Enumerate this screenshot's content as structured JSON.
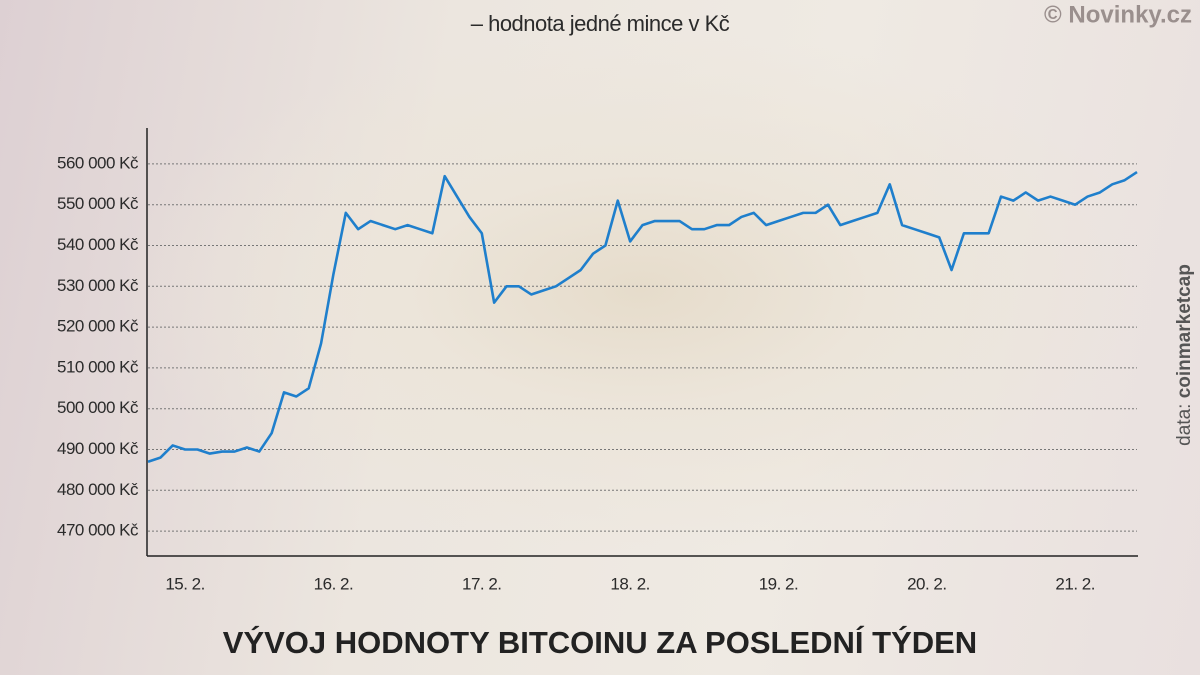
{
  "chart_data": {
    "type": "line",
    "title": "VÝVOJ HODNOTY BITCOINU ZA POSLEDNÍ TÝDEN",
    "subtitle": "– hodnota jedné mince v Kč",
    "credit": "© Novinky.cz",
    "source_label": "data:",
    "source": "coinmarketcap",
    "color": "#1f7fcc",
    "grid": true,
    "categories": [
      null,
      null,
      null,
      "15. 2.",
      null,
      null,
      null,
      null,
      null,
      null,
      null,
      null,
      null,
      null,
      null,
      "16. 2.",
      null,
      null,
      null,
      null,
      null,
      null,
      null,
      null,
      null,
      null,
      null,
      "17. 2.",
      null,
      null,
      null,
      null,
      null,
      null,
      null,
      null,
      null,
      null,
      null,
      "18. 2.",
      null,
      null,
      null,
      null,
      null,
      null,
      null,
      null,
      null,
      null,
      null,
      "19. 2.",
      null,
      null,
      null,
      null,
      null,
      null,
      null,
      null,
      null,
      null,
      null,
      "20. 2.",
      null,
      null,
      null,
      null,
      null,
      null,
      null,
      null,
      null,
      null,
      null,
      "21. 2.",
      null,
      null,
      null,
      null,
      null
    ],
    "values": [
      487000,
      488000,
      491000,
      490000,
      490000,
      489000,
      489500,
      489500,
      490500,
      489500,
      494000,
      504000,
      503000,
      505000,
      516000,
      533000,
      548000,
      544000,
      546000,
      545000,
      544000,
      545000,
      544000,
      543000,
      557000,
      552000,
      547000,
      543000,
      526000,
      530000,
      530000,
      528000,
      529000,
      530000,
      532000,
      534000,
      538000,
      540000,
      551000,
      541000,
      545000,
      546000,
      546000,
      546000,
      544000,
      544000,
      545000,
      545000,
      547000,
      548000,
      545000,
      546000,
      547000,
      548000,
      548000,
      550000,
      545000,
      546000,
      547000,
      548000,
      555000,
      545000,
      544000,
      543000,
      542000,
      534000,
      543000,
      543000,
      543000,
      552000,
      551000,
      553000,
      551000,
      552000,
      551000,
      550000,
      552000,
      553000,
      555000,
      556000,
      558000
    ],
    "ylim": [
      463900,
      568800
    ],
    "yticks": [
      {
        "value": 470000,
        "label": "470 000 Kč"
      },
      {
        "value": 480000,
        "label": "480 000 Kč"
      },
      {
        "value": 490000,
        "label": "490 000 Kč"
      },
      {
        "value": 500000,
        "label": "500 000 Kč"
      },
      {
        "value": 510000,
        "label": "510 000 Kč"
      },
      {
        "value": 520000,
        "label": "520 000 Kč"
      },
      {
        "value": 530000,
        "label": "530 000 Kč"
      },
      {
        "value": 540000,
        "label": "540 000 Kč"
      },
      {
        "value": 550000,
        "label": "550 000 Kč"
      },
      {
        "value": 560000,
        "label": "560 000 Kč"
      }
    ]
  }
}
